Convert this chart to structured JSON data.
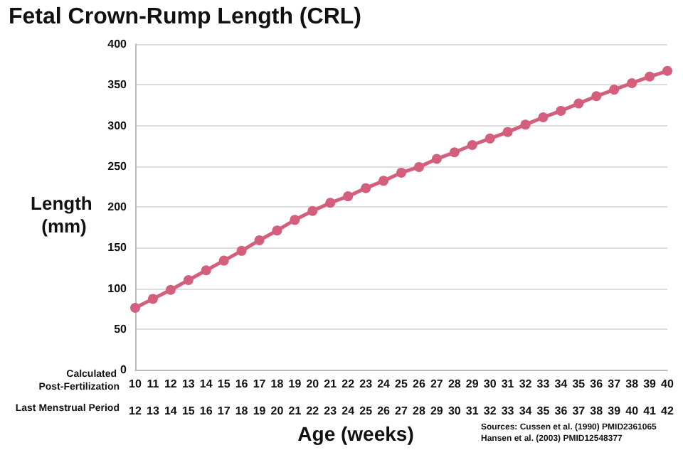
{
  "chart_data": {
    "type": "line",
    "title": "Fetal Crown-Rump Length (CRL)",
    "xlabel": "Age (weeks)",
    "ylabel": "Length (mm)",
    "x": [
      10,
      11,
      12,
      13,
      14,
      15,
      16,
      17,
      18,
      19,
      20,
      21,
      22,
      23,
      24,
      25,
      26,
      27,
      28,
      29,
      30,
      31,
      32,
      33,
      34,
      35,
      36,
      37,
      38,
      39,
      40
    ],
    "series": [
      {
        "color": "#d45f7c",
        "values": [
          76,
          87,
          98,
          110,
          122,
          134,
          146,
          159,
          171,
          184,
          195,
          205,
          213,
          223,
          232,
          242,
          249,
          259,
          267,
          276,
          284,
          292,
          301,
          310,
          318,
          327,
          336,
          344,
          352,
          360,
          367
        ]
      }
    ],
    "xlim": [
      10,
      40
    ],
    "xticks": [
      10,
      11,
      12,
      13,
      14,
      15,
      16,
      17,
      18,
      19,
      20,
      21,
      22,
      23,
      24,
      25,
      26,
      27,
      28,
      29,
      30,
      31,
      32,
      33,
      34,
      35,
      36,
      37,
      38,
      39,
      40
    ],
    "x2lim": [
      12,
      42
    ],
    "x2ticks": [
      12,
      13,
      14,
      15,
      16,
      17,
      18,
      19,
      20,
      21,
      22,
      23,
      24,
      25,
      26,
      27,
      28,
      29,
      30,
      31,
      32,
      33,
      34,
      35,
      36,
      37,
      38,
      39,
      40,
      41,
      42
    ],
    "ylim": [
      0,
      400
    ],
    "yticks": [
      0,
      50,
      100,
      150,
      200,
      250,
      300,
      350,
      400
    ],
    "annotations": [
      "Calculated Post-Fertilization",
      "Last Menstrual Period",
      "Sources: Cussen et al. (1990) PMID2361065",
      "Hansen et al. (2003) PMID12548377"
    ],
    "grid": "y",
    "marker": "circle",
    "line_style": "solid"
  }
}
